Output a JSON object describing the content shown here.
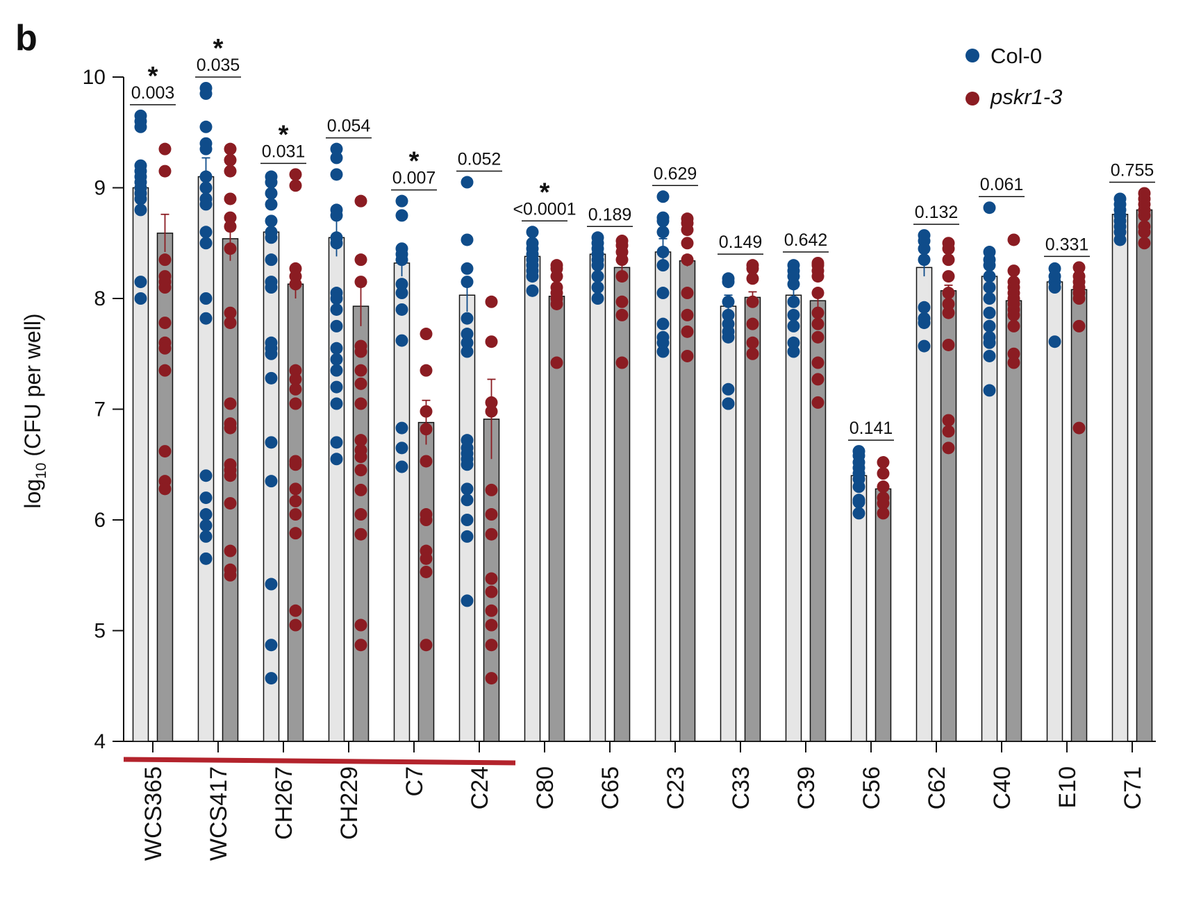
{
  "panel_label": "b",
  "colors": {
    "colA": "#0f4c8a",
    "colB": "#8b1c22",
    "barA": "#e6e6e6",
    "barB": "#9a9a9a",
    "underline": "#b3232c"
  },
  "chart_data": {
    "type": "bar",
    "ylabel_prefix": "log",
    "ylabel_sub": "10",
    "ylabel_suffix": " (CFU per well)",
    "ylim": [
      4,
      10
    ],
    "yticks": [
      4,
      5,
      6,
      7,
      8,
      9,
      10
    ],
    "legend_position": "top-right",
    "categories": [
      "WCS365",
      "WCS417",
      "CH267",
      "CH229",
      "C7",
      "C24",
      "C80",
      "C65",
      "C23",
      "C33",
      "C39",
      "C56",
      "C62",
      "C40",
      "E10",
      "C71"
    ],
    "underlined_categories": [
      "WCS365",
      "WCS417",
      "CH267",
      "CH229",
      "C7",
      "C24"
    ],
    "series": [
      {
        "name": "Col-0",
        "means": [
          9.0,
          9.1,
          8.6,
          8.55,
          8.32,
          8.03,
          8.38,
          8.4,
          8.42,
          7.93,
          8.03,
          6.4,
          8.28,
          8.2,
          8.15,
          8.76
        ],
        "errors": [
          0.12,
          0.17,
          0.1,
          0.17,
          0.12,
          0.15,
          0.05,
          0.05,
          0.12,
          0.1,
          0.06,
          0.05,
          0.08,
          0.1,
          0.05,
          0.04
        ],
        "points": [
          [
            9.65,
            9.6,
            9.55,
            9.2,
            9.15,
            9.1,
            9.05,
            9.0,
            8.95,
            8.9,
            8.8,
            8.15,
            8.0
          ],
          [
            9.9,
            9.85,
            9.55,
            9.4,
            9.35,
            9.1,
            9.0,
            8.9,
            8.85,
            8.6,
            8.5,
            8.0,
            7.82,
            6.4,
            6.2,
            6.05,
            5.95,
            5.85,
            5.65
          ],
          [
            9.1,
            9.05,
            8.95,
            8.85,
            8.7,
            8.6,
            8.55,
            8.35,
            8.15,
            8.1,
            7.6,
            7.55,
            7.5,
            7.28,
            6.7,
            6.35,
            5.42,
            4.87,
            4.57
          ],
          [
            9.35,
            9.27,
            9.12,
            8.8,
            8.75,
            8.55,
            8.5,
            8.05,
            8.0,
            7.9,
            7.75,
            7.55,
            7.45,
            7.35,
            7.2,
            7.05,
            6.7,
            6.55
          ],
          [
            8.88,
            8.75,
            8.45,
            8.4,
            8.35,
            8.13,
            8.05,
            7.9,
            7.62,
            6.83,
            6.65,
            6.48
          ],
          [
            9.05,
            8.53,
            8.27,
            8.15,
            7.82,
            7.68,
            7.6,
            7.52,
            6.72,
            6.65,
            6.6,
            6.55,
            6.5,
            6.28,
            6.18,
            6.0,
            5.85,
            5.27
          ],
          [
            8.6,
            8.5,
            8.45,
            8.4,
            8.35,
            8.3,
            8.25,
            8.2,
            8.07
          ],
          [
            8.55,
            8.5,
            8.45,
            8.4,
            8.35,
            8.3,
            8.2,
            8.1,
            8.0
          ],
          [
            8.92,
            8.73,
            8.7,
            8.6,
            8.42,
            8.3,
            8.05,
            7.77,
            7.65,
            7.6,
            7.52
          ],
          [
            8.18,
            8.15,
            7.97,
            7.85,
            7.77,
            7.7,
            7.65,
            7.18,
            7.05,
            7.05
          ],
          [
            8.3,
            8.25,
            8.2,
            8.13,
            7.97,
            7.85,
            7.75,
            7.6,
            7.52
          ],
          [
            6.62,
            6.58,
            6.52,
            6.47,
            6.42,
            6.37,
            6.3,
            6.18,
            6.16,
            6.06
          ],
          [
            8.57,
            8.52,
            8.45,
            8.35,
            7.92,
            7.82,
            7.78,
            7.57
          ],
          [
            8.82,
            8.42,
            8.35,
            8.3,
            8.2,
            8.1,
            8.0,
            7.87,
            7.75,
            7.65,
            7.6,
            7.48,
            7.17
          ],
          [
            8.27,
            8.2,
            8.15,
            8.1,
            7.61
          ],
          [
            8.9,
            8.85,
            8.8,
            8.75,
            8.7,
            8.65,
            8.6,
            8.53
          ]
        ]
      },
      {
        "name": "pskr1-3",
        "means": [
          8.59,
          8.54,
          8.13,
          7.93,
          6.88,
          6.91,
          8.02,
          8.28,
          8.34,
          8.01,
          7.98,
          6.28,
          8.07,
          7.98,
          8.08,
          8.8
        ],
        "errors": [
          0.17,
          0.2,
          0.13,
          0.18,
          0.2,
          0.36,
          0.03,
          0.04,
          0.05,
          0.05,
          0.1,
          0.02,
          0.05,
          0.05,
          0.07,
          0.04
        ],
        "points": [
          [
            9.35,
            9.15,
            8.35,
            8.2,
            8.15,
            8.1,
            7.78,
            7.6,
            7.55,
            7.35,
            6.62,
            6.35,
            6.28
          ],
          [
            9.35,
            9.25,
            9.15,
            8.9,
            8.73,
            8.65,
            8.45,
            7.87,
            7.78,
            7.05,
            6.87,
            6.83,
            6.5,
            6.45,
            6.4,
            6.15,
            5.72,
            5.55,
            5.5
          ],
          [
            9.12,
            9.02,
            8.27,
            8.2,
            8.13,
            7.35,
            7.27,
            7.18,
            7.05,
            6.53,
            6.5,
            6.28,
            6.17,
            6.05,
            5.88,
            5.18,
            5.05
          ],
          [
            8.88,
            8.35,
            8.15,
            7.57,
            7.52,
            7.35,
            7.23,
            7.05,
            6.72,
            6.63,
            6.57,
            6.45,
            6.27,
            6.05,
            5.87,
            5.05,
            4.87
          ],
          [
            7.68,
            7.35,
            6.98,
            6.82,
            6.53,
            6.05,
            6.0,
            5.72,
            5.65,
            5.53,
            4.87
          ],
          [
            7.97,
            7.61,
            7.06,
            6.98,
            6.27,
            6.05,
            5.87,
            5.47,
            5.35,
            5.18,
            5.05,
            4.87,
            4.57
          ],
          [
            8.3,
            8.27,
            8.2,
            8.1,
            8.05,
            8.0,
            7.95,
            7.42
          ],
          [
            8.52,
            8.48,
            8.42,
            8.35,
            8.2,
            7.97,
            7.85,
            7.42
          ],
          [
            8.72,
            8.68,
            8.62,
            8.5,
            8.35,
            8.05,
            7.85,
            7.7,
            7.48
          ],
          [
            8.3,
            8.27,
            8.18,
            7.97,
            7.77,
            7.6,
            7.5
          ],
          [
            8.32,
            8.3,
            8.25,
            8.2,
            8.05,
            7.87,
            7.77,
            7.65,
            7.42,
            7.27,
            7.06
          ],
          [
            6.52,
            6.42,
            6.3,
            6.2,
            6.15,
            6.06
          ],
          [
            8.5,
            8.45,
            8.35,
            8.2,
            8.05,
            7.95,
            7.87,
            7.58,
            6.9,
            6.8,
            6.65
          ],
          [
            8.53,
            8.25,
            8.15,
            8.1,
            8.05,
            8.0,
            7.95,
            7.9,
            7.85,
            7.75,
            7.5,
            7.42
          ],
          [
            8.28,
            8.2,
            8.15,
            8.1,
            8.05,
            8.0,
            7.75,
            6.83
          ],
          [
            8.95,
            8.9,
            8.85,
            8.8,
            8.75,
            8.65,
            8.6,
            8.5
          ]
        ]
      }
    ],
    "comparisons": [
      {
        "p": "0.003",
        "sig": true
      },
      {
        "p": "0.035",
        "sig": true
      },
      {
        "p": "0.031",
        "sig": true
      },
      {
        "p": "0.054",
        "sig": false
      },
      {
        "p": "0.007",
        "sig": true
      },
      {
        "p": "0.052",
        "sig": false
      },
      {
        "p": "<0.0001",
        "sig": true
      },
      {
        "p": "0.189",
        "sig": false
      },
      {
        "p": "0.629",
        "sig": false
      },
      {
        "p": "0.149",
        "sig": false
      },
      {
        "p": "0.642",
        "sig": false
      },
      {
        "p": "0.141",
        "sig": false
      },
      {
        "p": "0.132",
        "sig": false
      },
      {
        "p": "0.061",
        "sig": false
      },
      {
        "p": "0.331",
        "sig": false
      },
      {
        "p": "0.755",
        "sig": false
      }
    ],
    "significance_symbol": "*"
  }
}
